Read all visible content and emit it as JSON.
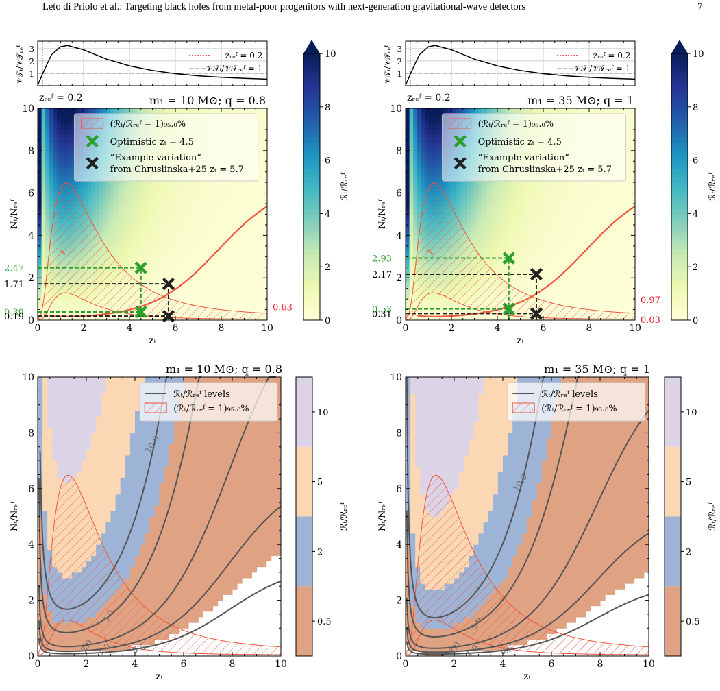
{
  "header": {
    "title": "Leto di Priolo et al.: Targeting black holes from metal-poor progenitors with next-generation gravitational-wave detectors",
    "page_number": "7"
  },
  "colors": {
    "ygnbu_low": "#ffffd9",
    "ygnbu_mid": "#41b6c4",
    "ygnbu_high": "#081d58",
    "hatch": "#f0543c",
    "optimistic_marker": "#2ca02c",
    "example_marker": "#222222",
    "contour": "#555555",
    "band_05": "#dfa283",
    "band_2": "#9db4d6",
    "band_5": "#fbd7b4",
    "band_10": "#dcd3e6",
    "zref_line": "#e8192c"
  },
  "chart_data": [
    {
      "id": "top-left",
      "type": "heatmap",
      "title": "m₁ = 10 M⊙; q = 0.8",
      "xlabel": "zₜ",
      "ylabel": "Nₜ/Nᵣₑᶠ",
      "xlim": [
        0,
        10
      ],
      "ylim": [
        0,
        10
      ],
      "xticks": [
        "0",
        "2",
        "4",
        "6",
        "8",
        "10"
      ],
      "yticks": [
        "0",
        "2",
        "4",
        "6",
        "8",
        "10"
      ],
      "colorbar": {
        "label": "ℛₜ/ℛᵣₑᶠ",
        "min": 0,
        "max": 10,
        "ticks": [
          "0",
          "2",
          "4",
          "6",
          "8",
          "10"
        ]
      },
      "contour_label": "1",
      "inset": {
        "ylabel": "𝒱𝒯ₜ/𝒱𝒯ᵣₑᶠ",
        "yticks": [
          "1",
          "2",
          "3"
        ],
        "curve": [
          [
            0,
            0.05
          ],
          [
            0.3,
            1.3
          ],
          [
            0.6,
            2.5
          ],
          [
            1.0,
            3.15
          ],
          [
            1.3,
            3.25
          ],
          [
            2,
            2.9
          ],
          [
            3,
            2.15
          ],
          [
            4,
            1.6
          ],
          [
            5,
            1.23
          ],
          [
            6,
            0.97
          ],
          [
            7,
            0.8
          ],
          [
            8,
            0.68
          ],
          [
            9,
            0.59
          ],
          [
            10,
            0.53
          ]
        ],
        "zref_value": 0.2,
        "legend": [
          "zᵣₑᶠ = 0.2",
          "𝒱𝒯ₜ/𝒱𝒯ᵣₑᶠ = 1"
        ],
        "zref_annotation": "zᵣₑᶠ = 0.2"
      },
      "legend": [
        "(ℛₜ/ℛᵣₑᶠ = 1)₉₅.₀%",
        "Optimistic zₜ = 4.5",
        "“Example variation”",
        "from Chruslinska+25 zₜ = 5.7"
      ],
      "markers": [
        {
          "name": "optimistic",
          "x": 4.5,
          "y": 2.47
        },
        {
          "name": "optimistic",
          "x": 4.5,
          "y": 0.39
        },
        {
          "name": "example",
          "x": 5.7,
          "y": 1.71
        },
        {
          "name": "example",
          "x": 5.7,
          "y": 0.19
        }
      ],
      "left_labels": [
        {
          "text": "2.47",
          "value": 2.47,
          "color": "green"
        },
        {
          "text": "1.71",
          "value": 1.71,
          "color": "black"
        },
        {
          "text": "0.39",
          "value": 0.39,
          "color": "green"
        },
        {
          "text": "0.19",
          "value": 0.19,
          "color": "black"
        }
      ],
      "right_labels": [
        {
          "text": "0.63",
          "value": 0.63,
          "color": "red"
        }
      ],
      "scale_factor": 1.0
    },
    {
      "id": "top-right",
      "type": "heatmap",
      "title": "m₁ = 35 M⊙; q = 1",
      "xlabel": "zₜ",
      "ylabel": "Nₜ/Nᵣₑᶠ",
      "xlim": [
        0,
        10
      ],
      "ylim": [
        0,
        10
      ],
      "xticks": [
        "0",
        "2",
        "4",
        "6",
        "8",
        "10"
      ],
      "yticks": [
        "0",
        "2",
        "4",
        "6",
        "8",
        "10"
      ],
      "colorbar": {
        "label": "ℛₜ/ℛᵣₑᶠ",
        "min": 0,
        "max": 10,
        "ticks": [
          "0",
          "2",
          "4",
          "6",
          "8",
          "10"
        ]
      },
      "contour_label": "1",
      "inset": {
        "ylabel": "𝒱𝒯ₜ/𝒱𝒯ᵣₑᶠ",
        "yticks": [
          "1",
          "2",
          "3"
        ],
        "curve": [
          [
            0,
            0.05
          ],
          [
            0.3,
            1.3
          ],
          [
            0.6,
            2.5
          ],
          [
            1.0,
            3.15
          ],
          [
            1.3,
            3.25
          ],
          [
            2,
            2.9
          ],
          [
            3,
            2.15
          ],
          [
            4,
            1.6
          ],
          [
            5,
            1.23
          ],
          [
            6,
            0.97
          ],
          [
            7,
            0.8
          ],
          [
            8,
            0.68
          ],
          [
            9,
            0.59
          ],
          [
            10,
            0.53
          ]
        ],
        "zref_value": 0.2,
        "legend": [
          "zᵣₑᶠ = 0.2",
          "𝒱𝒯ₜ/𝒱𝒯ᵣₑᶠ = 1"
        ],
        "zref_annotation": "zᵣₑᶠ = 0.2"
      },
      "legend": [
        "(ℛₜ/ℛᵣₑᶠ = 1)₉₅.₀%",
        "Optimistic zₜ = 4.5",
        "“Example variation”",
        "from Chruslinska+25 zₜ = 5.7"
      ],
      "markers": [
        {
          "name": "optimistic",
          "x": 4.5,
          "y": 2.93
        },
        {
          "name": "optimistic",
          "x": 4.5,
          "y": 0.53
        },
        {
          "name": "example",
          "x": 5.7,
          "y": 2.17
        },
        {
          "name": "example",
          "x": 5.7,
          "y": 0.31
        }
      ],
      "left_labels": [
        {
          "text": "2.93",
          "value": 2.93,
          "color": "green"
        },
        {
          "text": "2.17",
          "value": 2.17,
          "color": "black"
        },
        {
          "text": "0.53",
          "value": 0.53,
          "color": "green"
        },
        {
          "text": "0.31",
          "value": 0.31,
          "color": "black"
        }
      ],
      "right_labels": [
        {
          "text": "0.97",
          "value": 0.97,
          "color": "red"
        },
        {
          "text": "0.03",
          "value": 0.03,
          "color": "red"
        }
      ],
      "scale_factor": 1.0
    },
    {
      "id": "bottom-left",
      "type": "area",
      "title": "m₁ = 10 M⊙; q = 0.8",
      "xlabel": "zₜ",
      "ylabel": "Nₜ/Nᵣₑᶠ",
      "xlim": [
        0,
        10
      ],
      "ylim": [
        0,
        10
      ],
      "xticks": [
        "0",
        "2",
        "4",
        "6",
        "8",
        "10"
      ],
      "yticks": [
        "0",
        "2",
        "4",
        "6",
        "8",
        "10"
      ],
      "colorbar": {
        "label": "ℛₜ/ℛᵣₑᶠ",
        "ticks": [
          "0.5",
          "2",
          "5",
          "10"
        ]
      },
      "legend": [
        "ℛₜ/ℛᵣₑᶠ levels",
        "(ℛₜ/ℛᵣₑᶠ = 1)₉₅.₀%"
      ],
      "contour_levels": [
        {
          "label": "0.5",
          "value": 0.5
        },
        {
          "label": "1.0",
          "value": 1.0
        },
        {
          "label": "2.0",
          "value": 2.0
        },
        {
          "label": "5.0",
          "value": 5.0
        },
        {
          "label": "10.0",
          "value": 10.0
        }
      ],
      "scale_factor": 1.0
    },
    {
      "id": "bottom-right",
      "type": "area",
      "title": "m₁ = 35 M⊙; q = 1",
      "xlabel": "zₜ",
      "ylabel": "Nₜ/Nᵣₑᶠ",
      "xlim": [
        0,
        10
      ],
      "ylim": [
        0,
        10
      ],
      "xticks": [
        "0",
        "2",
        "4",
        "6",
        "8",
        "10"
      ],
      "yticks": [
        "0",
        "2",
        "4",
        "6",
        "8",
        "10"
      ],
      "colorbar": {
        "label": "ℛₜ/ℛᵣₑᶠ",
        "ticks": [
          "0.5",
          "2",
          "5",
          "10"
        ]
      },
      "legend": [
        "ℛₜ/ℛᵣₑᶠ levels",
        "(ℛₜ/ℛᵣₑᶠ = 1)₉₅.₀%"
      ],
      "contour_levels": [
        {
          "label": "0.5",
          "value": 0.5
        },
        {
          "label": "1.0",
          "value": 1.0
        },
        {
          "label": "2.0",
          "value": 2.0
        },
        {
          "label": "5.0",
          "value": 5.0
        },
        {
          "label": "10.0",
          "value": 10.0
        }
      ],
      "scale_factor": 0.82
    }
  ]
}
